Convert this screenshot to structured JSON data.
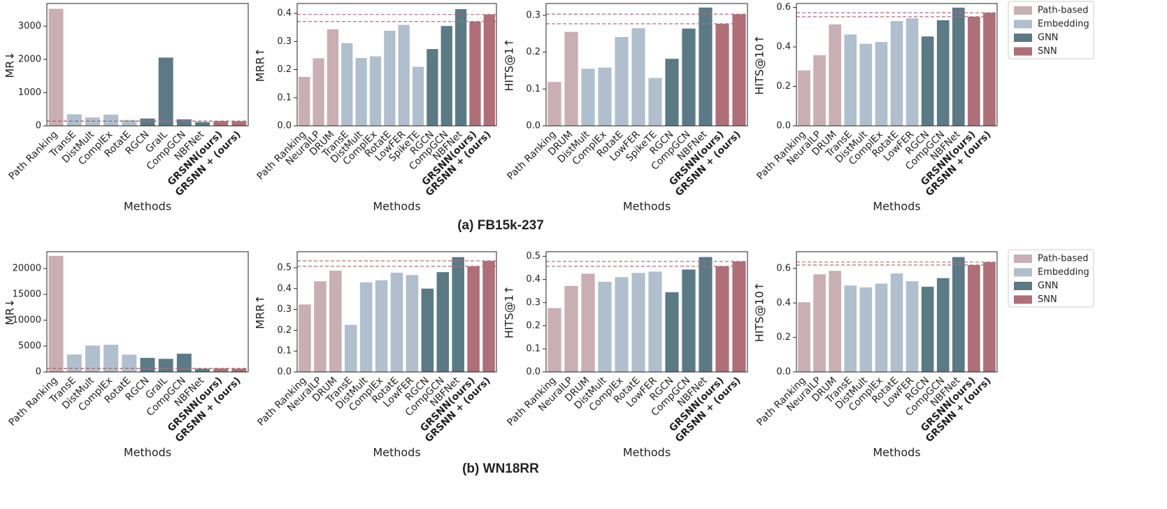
{
  "captions": [
    "(a) FB15k-237",
    "(b) WN18RR"
  ],
  "highlight": {
    "color": "#ae6f78",
    "bold_labels": true,
    "reference_lines": true
  },
  "chart_data": [
    {
      "type": "bar",
      "ylabel": "MR↓",
      "xlabel": "Methods",
      "categories": [
        "Path Ranking",
        "TransE",
        "DistMult",
        "ComplEx",
        "RotatE",
        "RGCN",
        "GraIL",
        "CompGCN",
        "NBFNet",
        "GRSNN(ours)",
        "GRSNN + (ours)"
      ],
      "values": [
        3521,
        347,
        254,
        339,
        177,
        221,
        2053,
        197,
        114,
        145,
        140
      ],
      "colors": [
        "#c9aeb3",
        "#b0bfcd",
        "#b0bfcd",
        "#b0bfcd",
        "#b0bfcd",
        "#5b7a86",
        "#5b7a86",
        "#5b7a86",
        "#5b7a86",
        "#ae6f78",
        "#ae6f78"
      ],
      "ylim": [
        0,
        3680
      ],
      "yticks": [
        0,
        1000,
        2000,
        3000
      ]
    },
    {
      "type": "bar",
      "ylabel": "MRR↑",
      "xlabel": "Methods",
      "categories": [
        "Path Ranking",
        "NeuralLP",
        "DRUM",
        "TransE",
        "DistMult",
        "ComplEx",
        "RotatE",
        "LowFER",
        "SpikeTE",
        "RGCN",
        "CompGCN",
        "NBFNet",
        "GRSNN(ours)",
        "GRSNN + (ours)"
      ],
      "values": [
        0.174,
        0.24,
        0.343,
        0.294,
        0.241,
        0.247,
        0.338,
        0.359,
        0.21,
        0.273,
        0.355,
        0.415,
        0.371,
        0.396
      ],
      "colors": [
        "#c9aeb3",
        "#c9aeb3",
        "#c9aeb3",
        "#b0bfcd",
        "#b0bfcd",
        "#b0bfcd",
        "#b0bfcd",
        "#b0bfcd",
        "#b0bfcd",
        "#5b7a86",
        "#5b7a86",
        "#5b7a86",
        "#ae6f78",
        "#ae6f78"
      ],
      "ylim": [
        0,
        0.435
      ],
      "yticks": [
        {
          "value": 0,
          "label": "0.0"
        },
        0.1,
        0.2,
        0.3,
        0.4
      ]
    },
    {
      "type": "bar",
      "ylabel": "HITS@1↑",
      "xlabel": "Methods",
      "categories": [
        "Path Ranking",
        "DRUM",
        "DistMult",
        "ComplEx",
        "RotatE",
        "LowFER",
        "SpikeTE",
        "RGCN",
        "CompGCN",
        "NBFNet",
        "GRSNN(ours)",
        "GRSNN + (ours)"
      ],
      "values": [
        0.119,
        0.255,
        0.155,
        0.158,
        0.241,
        0.265,
        0.13,
        0.182,
        0.264,
        0.321,
        0.277,
        0.303
      ],
      "colors": [
        "#c9aeb3",
        "#c9aeb3",
        "#b0bfcd",
        "#b0bfcd",
        "#b0bfcd",
        "#b0bfcd",
        "#b0bfcd",
        "#5b7a86",
        "#5b7a86",
        "#5b7a86",
        "#ae6f78",
        "#ae6f78"
      ],
      "ylim": [
        0,
        0.332
      ],
      "yticks": [
        {
          "value": 0,
          "label": "0.0"
        },
        0.1,
        0.2,
        0.3
      ]
    },
    {
      "type": "bar",
      "ylabel": "HITS@10↑",
      "xlabel": "Methods",
      "categories": [
        "Path Ranking",
        "NeuralLP",
        "DRUM",
        "TransE",
        "DistMult",
        "ComplEx",
        "RotatE",
        "LowFER",
        "RGCN",
        "CompGCN",
        "NBFNet",
        "GRSNN(ours)",
        "GRSNN + (ours)"
      ],
      "values": [
        0.281,
        0.358,
        0.514,
        0.463,
        0.416,
        0.425,
        0.531,
        0.545,
        0.453,
        0.535,
        0.599,
        0.553,
        0.573
      ],
      "colors": [
        "#c9aeb3",
        "#c9aeb3",
        "#c9aeb3",
        "#b0bfcd",
        "#b0bfcd",
        "#b0bfcd",
        "#b0bfcd",
        "#b0bfcd",
        "#5b7a86",
        "#5b7a86",
        "#5b7a86",
        "#ae6f78",
        "#ae6f78"
      ],
      "ylim": [
        0,
        0.62
      ],
      "yticks": [
        {
          "value": 0,
          "label": "0.0"
        },
        0.2,
        0.4,
        0.6
      ],
      "legend": [
        {
          "name": "Path-based",
          "color": "#c9aeb3"
        },
        {
          "name": "Embedding",
          "color": "#b0bfcd"
        },
        {
          "name": "GNN",
          "color": "#5b7a86"
        },
        {
          "name": "SNN",
          "color": "#ae6f78"
        }
      ]
    },
    {
      "type": "bar",
      "ylabel": "MR↓",
      "xlabel": "Methods",
      "categories": [
        "Path Ranking",
        "TransE",
        "DistMult",
        "ComplEx",
        "RotatE",
        "RGCN",
        "GraIL",
        "CompGCN",
        "NBFNet",
        "GRSNN(ours)",
        "GRSNN + (ours)"
      ],
      "values": [
        22438,
        3384,
        5110,
        5261,
        3340,
        2719,
        2539,
        3533,
        636,
        700,
        650
      ],
      "colors": [
        "#c9aeb3",
        "#b0bfcd",
        "#b0bfcd",
        "#b0bfcd",
        "#b0bfcd",
        "#5b7a86",
        "#5b7a86",
        "#5b7a86",
        "#5b7a86",
        "#ae6f78",
        "#ae6f78"
      ],
      "ylim": [
        0,
        23243
      ],
      "yticks": [
        0,
        5000,
        10000,
        15000,
        20000
      ]
    },
    {
      "type": "bar",
      "ylabel": "MRR↑",
      "xlabel": "Methods",
      "categories": [
        "Path Ranking",
        "NeuralLP",
        "DRUM",
        "TransE",
        "DistMult",
        "ComplEx",
        "RotatE",
        "LowFER",
        "RGCN",
        "CompGCN",
        "NBFNet",
        "GRSNN(ours)",
        "GRSNN + (ours)"
      ],
      "values": [
        0.324,
        0.435,
        0.486,
        0.226,
        0.43,
        0.44,
        0.476,
        0.465,
        0.4,
        0.479,
        0.551,
        0.507,
        0.533
      ],
      "colors": [
        "#c9aeb3",
        "#c9aeb3",
        "#c9aeb3",
        "#b0bfcd",
        "#b0bfcd",
        "#b0bfcd",
        "#b0bfcd",
        "#b0bfcd",
        "#5b7a86",
        "#5b7a86",
        "#5b7a86",
        "#ae6f78",
        "#ae6f78"
      ],
      "ylim": [
        0,
        0.577
      ],
      "yticks": [
        {
          "value": 0,
          "label": "0.0"
        },
        0.1,
        0.2,
        0.3,
        0.4,
        0.5
      ]
    },
    {
      "type": "bar",
      "ylabel": "HITS@1↑",
      "xlabel": "Methods",
      "categories": [
        "Path Ranking",
        "NeuralLP",
        "DRUM",
        "DistMult",
        "ComplEx",
        "RotatE",
        "LowFER",
        "RGCN",
        "CompGCN",
        "NBFNet",
        "GRSNN(ours)",
        "GRSNN + (ours)"
      ],
      "values": [
        0.276,
        0.372,
        0.425,
        0.39,
        0.41,
        0.428,
        0.434,
        0.345,
        0.443,
        0.497,
        0.457,
        0.478
      ],
      "colors": [
        "#c9aeb3",
        "#c9aeb3",
        "#c9aeb3",
        "#b0bfcd",
        "#b0bfcd",
        "#b0bfcd",
        "#b0bfcd",
        "#5b7a86",
        "#5b7a86",
        "#5b7a86",
        "#ae6f78",
        "#ae6f78"
      ],
      "ylim": [
        0,
        0.52
      ],
      "yticks": [
        {
          "value": 0,
          "label": "0.0"
        },
        0.1,
        0.2,
        0.3,
        0.4,
        0.5
      ]
    },
    {
      "type": "bar",
      "ylabel": "HITS@10↑",
      "xlabel": "Methods",
      "categories": [
        "Path Ranking",
        "NeuralLP",
        "DRUM",
        "TransE",
        "DistMult",
        "ComplEx",
        "RotatE",
        "LowFER",
        "RGCN",
        "CompGCN",
        "NBFNet",
        "GRSNN(ours)",
        "GRSNN + (ours)"
      ],
      "values": [
        0.404,
        0.566,
        0.586,
        0.501,
        0.49,
        0.512,
        0.571,
        0.526,
        0.494,
        0.544,
        0.666,
        0.62,
        0.637
      ],
      "colors": [
        "#c9aeb3",
        "#c9aeb3",
        "#c9aeb3",
        "#b0bfcd",
        "#b0bfcd",
        "#b0bfcd",
        "#b0bfcd",
        "#b0bfcd",
        "#5b7a86",
        "#5b7a86",
        "#5b7a86",
        "#ae6f78",
        "#ae6f78"
      ],
      "ylim": [
        0,
        0.697
      ],
      "yticks": [
        {
          "value": 0,
          "label": "0.0"
        },
        0.2,
        0.4,
        0.6
      ],
      "legend": [
        {
          "name": "Path-based",
          "color": "#c9aeb3"
        },
        {
          "name": "Embedding",
          "color": "#b0bfcd"
        },
        {
          "name": "GNN",
          "color": "#5b7a86"
        },
        {
          "name": "SNN",
          "color": "#ae6f78"
        }
      ]
    }
  ]
}
